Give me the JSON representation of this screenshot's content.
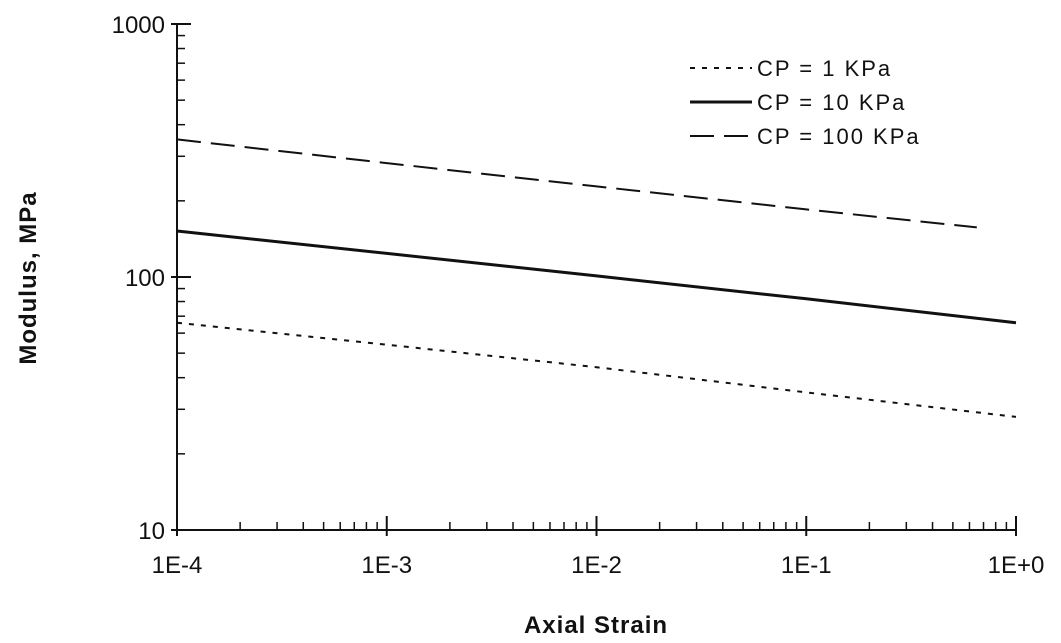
{
  "chart_data": {
    "type": "line",
    "title": "",
    "xlabel": "Axial Strain",
    "ylabel": "Modulus, MPa",
    "x_scale": "log",
    "y_scale": "log",
    "xlim": [
      0.0001,
      1
    ],
    "ylim": [
      10,
      1000
    ],
    "x_ticks": [
      {
        "value": 0.0001,
        "label": "1E-4"
      },
      {
        "value": 0.001,
        "label": "1E-3"
      },
      {
        "value": 0.01,
        "label": "1E-2"
      },
      {
        "value": 0.1,
        "label": "1E-1"
      },
      {
        "value": 1,
        "label": "1E+0"
      }
    ],
    "y_ticks": [
      {
        "value": 10,
        "label": "10"
      },
      {
        "value": 100,
        "label": "100"
      },
      {
        "value": 1000,
        "label": "1000"
      }
    ],
    "grid": false,
    "legend_position": "top-right",
    "series": [
      {
        "name": "CP = 1 KPa",
        "style": "dotted",
        "color": "#111111",
        "x": [
          0.0001,
          0.001,
          0.01,
          0.1,
          1
        ],
        "y": [
          66,
          54,
          44,
          35,
          28
        ]
      },
      {
        "name": "CP = 10 KPa",
        "style": "solid",
        "color": "#111111",
        "x": [
          0.0001,
          0.001,
          0.01,
          0.1,
          1
        ],
        "y": [
          152,
          124,
          101,
          82,
          66
        ]
      },
      {
        "name": "CP = 100 KPa",
        "style": "dashed",
        "color": "#111111",
        "x": [
          0.0001,
          0.001,
          0.01,
          0.1,
          0.65
        ],
        "y": [
          350,
          282,
          228,
          185,
          157
        ]
      }
    ]
  }
}
